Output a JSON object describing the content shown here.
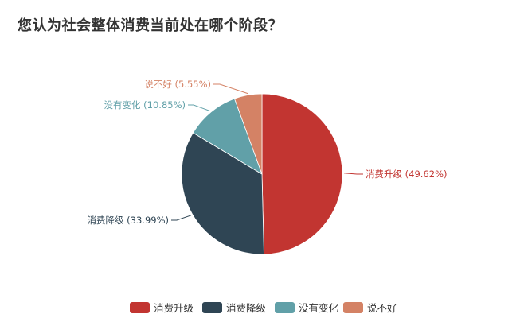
{
  "chart_data": {
    "type": "pie",
    "title": "您认为社会整体消费当前处在哪个阶段？",
    "slices": [
      {
        "name": "消费升级",
        "value": 49.62,
        "label": "消费升级 (49.62%)",
        "color": "#c23531"
      },
      {
        "name": "消费降级",
        "value": 33.99,
        "label": "消费降级 (33.99%)",
        "color": "#2f4554"
      },
      {
        "name": "没有变化",
        "value": 10.85,
        "label": "没有变化 (10.85%)",
        "color": "#61a0a8"
      },
      {
        "name": "说不好",
        "value": 5.55,
        "label": "说不好 (5.55%)",
        "color": "#d48265"
      }
    ],
    "legend": {
      "placement": "bottom-center",
      "items": [
        "消费升级",
        "消费降级",
        "没有变化",
        "说不好"
      ]
    }
  }
}
